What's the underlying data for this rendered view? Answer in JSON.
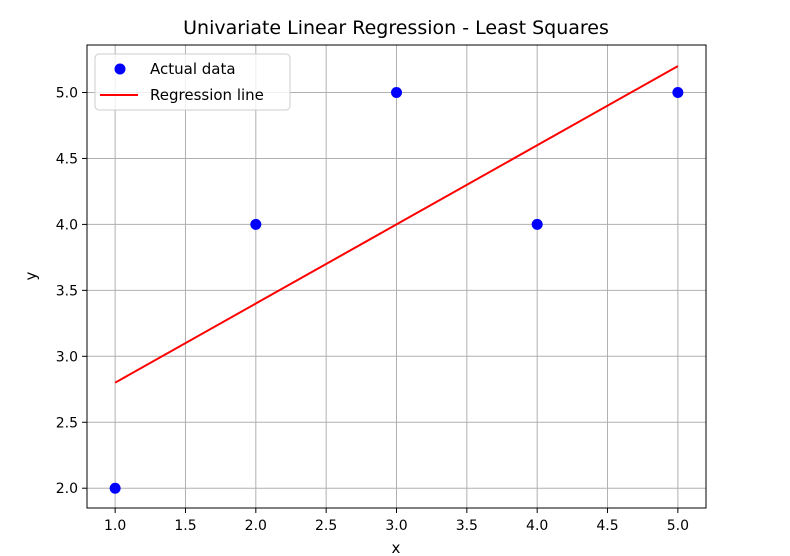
{
  "chart_data": {
    "type": "scatter",
    "title": "Univariate Linear Regression - Least Squares",
    "xlabel": "x",
    "ylabel": "y",
    "xlim": [
      0.8,
      5.2
    ],
    "ylim": [
      1.85,
      5.36
    ],
    "xticks": [
      1.0,
      1.5,
      2.0,
      2.5,
      3.0,
      3.5,
      4.0,
      4.5,
      5.0
    ],
    "yticks": [
      2.0,
      2.5,
      3.0,
      3.5,
      4.0,
      4.5,
      5.0
    ],
    "xtick_labels": [
      "1.0",
      "1.5",
      "2.0",
      "2.5",
      "3.0",
      "3.5",
      "4.0",
      "4.5",
      "5.0"
    ],
    "ytick_labels": [
      "2.0",
      "2.5",
      "3.0",
      "3.5",
      "4.0",
      "4.5",
      "5.0"
    ],
    "grid": true,
    "legend_position": "top-left",
    "series": [
      {
        "name": "Actual data",
        "kind": "scatter",
        "color": "#0000ff",
        "x": [
          1,
          2,
          3,
          4,
          5
        ],
        "y": [
          2,
          4,
          5,
          4,
          5
        ]
      },
      {
        "name": "Regression line",
        "kind": "line",
        "color": "#ff0000",
        "x": [
          1,
          2,
          3,
          4,
          5
        ],
        "y": [
          2.8,
          3.4,
          4.0,
          4.6,
          5.2
        ]
      }
    ]
  }
}
